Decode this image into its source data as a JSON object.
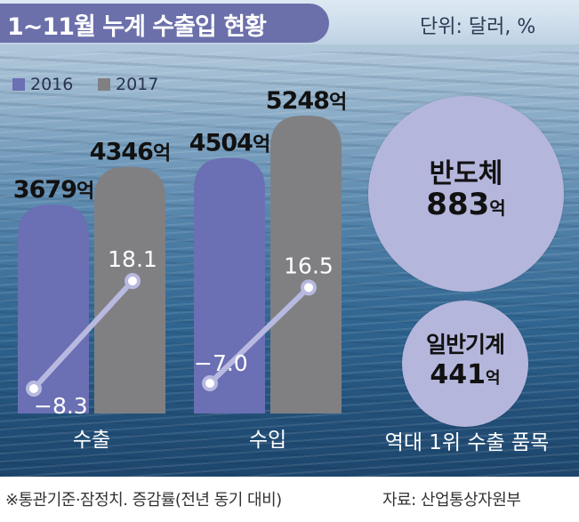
{
  "header": {
    "title": "1~11월 누계 수출입 현황",
    "unit": "단위: 달러, %"
  },
  "legend": [
    {
      "label": "2016",
      "color": "#6b6fb3"
    },
    {
      "label": "2017",
      "color": "#808083"
    }
  ],
  "chart_data": {
    "type": "bar",
    "categories": [
      "수출",
      "수입"
    ],
    "series": [
      {
        "name": "2016",
        "values": [
          3679,
          4504
        ],
        "labels": [
          "3679억",
          "4504억"
        ],
        "color": "#6b6fb3"
      },
      {
        "name": "2017",
        "values": [
          4346,
          5248
        ],
        "labels": [
          "4346억",
          "5248억"
        ],
        "color": "#808083"
      }
    ],
    "growth_rates": [
      {
        "category": "수출",
        "from": -8.3,
        "to": 18.1,
        "from_label": "−8.3",
        "to_label": "18.1"
      },
      {
        "category": "수입",
        "from": -7.0,
        "to": 16.5,
        "from_label": "−7.0",
        "to_label": "16.5"
      }
    ],
    "line_color": "#b8b9e0"
  },
  "top_items": {
    "label": "역대 1위 수출 품목",
    "items": [
      {
        "name": "반도체",
        "value": 883,
        "unit": "억"
      },
      {
        "name": "일반기계",
        "value": 441,
        "unit": "억"
      }
    ]
  },
  "footer": {
    "note": "※통관기준·잠정치. 증감률(전년 동기 대비)",
    "source": "자료: 산업통상자원부"
  }
}
